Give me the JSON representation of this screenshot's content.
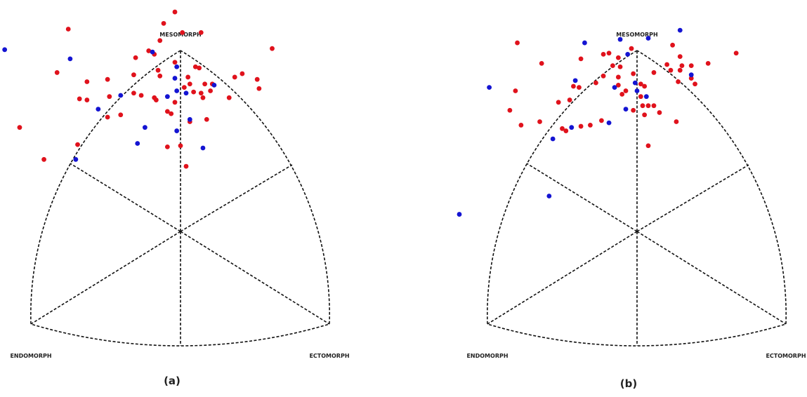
{
  "chart_data": [
    {
      "type": "scatter",
      "caption": "(a)",
      "labels": {
        "top": "MESOMORPH",
        "left": "ENDOMORPH",
        "right": "ECTOMORPH"
      },
      "xlim": [
        -9.5,
        9.5
      ],
      "ylim": [
        -10,
        20
      ],
      "series": [
        {
          "color": "#e0121c",
          "x": [
            -0.3,
            -0.9,
            0.1,
            1.1,
            -6.0,
            -1.1,
            -2.4,
            -1.7,
            -1.4,
            4.9,
            -6.6,
            -5.0,
            -3.9,
            -2.5,
            -1.2,
            -1.1,
            0.8,
            1.0,
            -0.3,
            0.4,
            0.5,
            2.9,
            3.3,
            4.1,
            4.2,
            2.6,
            1.7,
            1.3,
            1.6,
            1.1,
            0.2,
            0.7,
            1.2,
            -1.4,
            -1.3,
            -2.1,
            -2.5,
            -3.8,
            -5.0,
            -5.4,
            -3.2,
            -3.9,
            -0.3,
            -0.7,
            -0.5,
            0.5,
            1.4,
            -8.6,
            -7.3,
            -5.5,
            -0.7,
            0.0,
            0.3
          ],
          "values": [
            19.2,
            18.2,
            17.4,
            17.4,
            17.7,
            16.7,
            15.2,
            15.8,
            15.5,
            16.0,
            13.9,
            13.1,
            13.3,
            13.7,
            14.1,
            13.6,
            14.4,
            14.3,
            14.8,
            13.5,
            12.9,
            13.5,
            13.8,
            13.3,
            12.5,
            11.7,
            12.9,
            12.9,
            12.3,
            12.1,
            12.6,
            12.2,
            11.7,
            11.7,
            11.5,
            11.9,
            12.1,
            11.8,
            11.5,
            11.6,
            10.2,
            10.0,
            11.3,
            10.5,
            10.3,
            9.6,
            9.8,
            9.1,
            6.3,
            7.6,
            7.4,
            7.5,
            5.7
          ]
        },
        {
          "color": "#1414d2",
          "x": [
            -9.4,
            -5.9,
            -1.5,
            -0.2,
            -0.3,
            -0.2,
            0.3,
            -0.7,
            1.8,
            -3.2,
            -4.4,
            -1.9,
            -0.2,
            0.5,
            -2.3,
            1.2,
            -5.6
          ],
          "values": [
            15.9,
            15.1,
            15.7,
            14.4,
            13.4,
            12.3,
            12.1,
            11.8,
            12.8,
            11.9,
            10.7,
            9.1,
            8.8,
            9.8,
            7.7,
            7.3,
            6.3
          ]
        }
      ]
    },
    {
      "type": "scatter",
      "caption": "(b)",
      "labels": {
        "top": "MESOMORPH",
        "left": "ENDOMORPH",
        "right": "ECTOMORPH"
      },
      "xlim": [
        -9.5,
        9.5
      ],
      "ylim": [
        -10,
        20
      ],
      "series": [
        {
          "color": "#e0121c",
          "x": [
            -6.4,
            -5.1,
            -3.0,
            -1.8,
            -1.5,
            -1.0,
            -0.3,
            1.9,
            2.3,
            5.3,
            -6.5,
            -6.8,
            -6.2,
            -5.2,
            -4.2,
            -3.6,
            -3.1,
            -3.4,
            -2.2,
            -1.8,
            -1.3,
            -1.0,
            -0.9,
            -0.2,
            -0.8,
            -1.0,
            -0.6,
            0.2,
            0.4,
            0.9,
            1.6,
            1.8,
            2.4,
            2.3,
            2.9,
            3.8,
            2.2,
            2.9,
            3.1,
            0.2,
            0.3,
            0.6,
            0.9,
            1.2,
            0.4,
            2.1,
            -0.2,
            -1.9,
            -2.5,
            -3.0,
            -3.8,
            -4.0,
            0.6
          ],
          "values": [
            16.5,
            14.7,
            15.1,
            15.5,
            15.6,
            15.2,
            16.0,
            16.3,
            15.3,
            15.6,
            12.3,
            10.6,
            9.3,
            9.6,
            11.3,
            11.5,
            12.6,
            12.7,
            13.0,
            13.6,
            14.5,
            13.5,
            14.4,
            13.8,
            12.0,
            12.8,
            12.3,
            12.9,
            12.7,
            13.9,
            14.6,
            14.1,
            14.5,
            14.1,
            14.5,
            14.7,
            13.1,
            13.4,
            12.9,
            11.8,
            11.0,
            11.0,
            11.0,
            10.4,
            10.2,
            9.6,
            10.6,
            9.7,
            9.3,
            9.2,
            8.8,
            9.0,
            7.5
          ]
        },
        {
          "color": "#1414d2",
          "x": [
            -2.8,
            -0.9,
            0.6,
            2.3,
            -7.9,
            -3.3,
            -0.5,
            -0.1,
            -1.2,
            0.0,
            0.5,
            -0.6,
            -1.5,
            -3.5,
            -4.5,
            -4.7,
            -9.5,
            2.9
          ],
          "values": [
            16.5,
            16.8,
            16.9,
            17.6,
            12.6,
            13.2,
            15.5,
            13.0,
            12.6,
            12.3,
            11.8,
            10.7,
            9.5,
            9.1,
            8.1,
            3.1,
            1.5,
            13.7
          ]
        }
      ]
    }
  ]
}
